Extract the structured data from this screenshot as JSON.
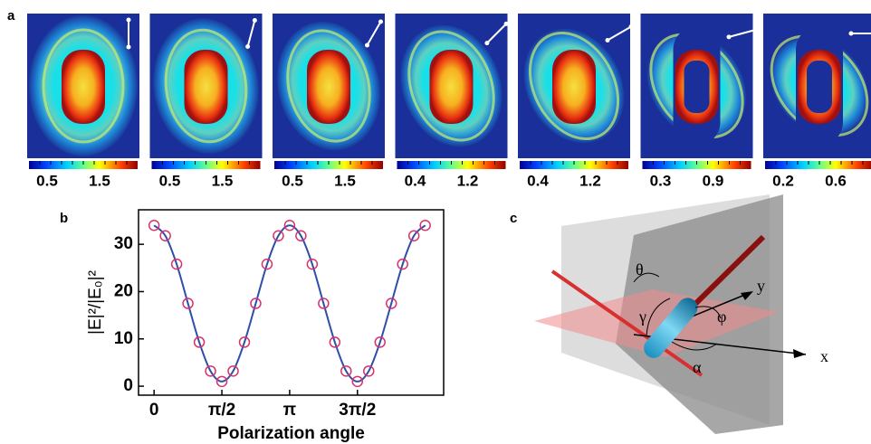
{
  "panel_labels": {
    "a": "a",
    "b": "b",
    "c": "c"
  },
  "field_maps": [
    {
      "colorbar_labels": [
        "0.5",
        "1.5"
      ]
    },
    {
      "colorbar_labels": [
        "0.5",
        "1.5"
      ]
    },
    {
      "colorbar_labels": [
        "0.5",
        "1.5"
      ]
    },
    {
      "colorbar_labels": [
        "0.4",
        "1.2"
      ]
    },
    {
      "colorbar_labels": [
        "0.4",
        "1.2"
      ]
    },
    {
      "colorbar_labels": [
        "0.3",
        "0.9"
      ]
    },
    {
      "colorbar_labels": [
        "0.2",
        "0.6"
      ]
    }
  ],
  "chart_data": {
    "type": "line",
    "ylabel": "|E|²/|E₀|²",
    "xlabel": "Polarization angle",
    "x": [
      0,
      0.2618,
      0.5236,
      0.7854,
      1.0472,
      1.309,
      1.5708,
      1.8326,
      2.0944,
      2.3562,
      2.618,
      2.8798,
      3.1416,
      3.4034,
      3.6652,
      3.927,
      4.1888,
      4.4506,
      4.7124,
      4.9742,
      5.236,
      5.4978,
      5.7596,
      6.0214,
      6.2832
    ],
    "values": [
      34,
      31.8,
      25.8,
      17.5,
      9.3,
      3.2,
      1,
      3.2,
      9.3,
      17.5,
      25.8,
      31.8,
      34,
      31.8,
      25.8,
      17.5,
      9.3,
      3.2,
      1,
      3.2,
      9.3,
      17.5,
      25.8,
      31.8,
      34
    ],
    "color": "#2d4fa8",
    "marker_color": "#d6336c",
    "xlim": [
      -0.36,
      6.71
    ],
    "ylim": [
      -1.9,
      37.3
    ],
    "xticks": [
      0,
      {
        "value": 1.5708,
        "label": "π/2"
      },
      {
        "value": 3.1416,
        "label": "π"
      },
      {
        "value": 4.7124,
        "label": "3π/2"
      }
    ],
    "yticks": [
      0,
      10,
      20,
      30
    ]
  },
  "diagram": {
    "labels": {
      "theta": "θ",
      "gamma": "γ",
      "phi": "φ",
      "alpha": "α",
      "x": "x",
      "y": "y"
    }
  }
}
